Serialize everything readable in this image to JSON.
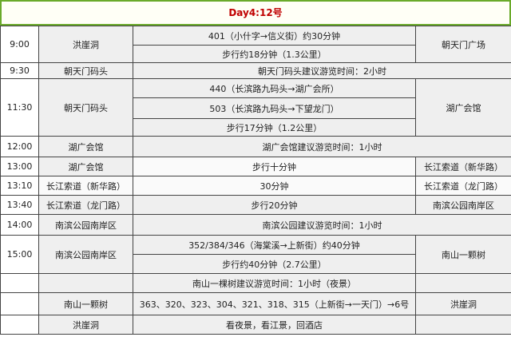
{
  "title": "Day4:12号",
  "rows": {
    "r900": {
      "time": "9:00",
      "from": "洪崖洞",
      "a": "401（小什字→信义街）约30分钟",
      "b": "步行约18分钟（1.3公里）",
      "to": "朝天门广场"
    },
    "r930": {
      "time": "9:30",
      "from": "朝天门码头",
      "note": "朝天门码头建议游览时间：2小时"
    },
    "r1130": {
      "time": "11:30",
      "from": "朝天门码头",
      "a": "440（长滨路九码头→湖广会所）",
      "b": "503（长滨路九码头→下望龙门）",
      "c": "步行17分钟（1.2公里）",
      "to": "湖广会馆"
    },
    "r1200": {
      "time": "12:00",
      "from": "湖广会馆",
      "note": "湖广会馆建议游览时间：1小时"
    },
    "r1300": {
      "time": "13:00",
      "from": "湖广会馆",
      "a": "步行十分钟",
      "to": "长江索道（新华路）"
    },
    "r1310": {
      "time": "13:10",
      "from": "长江索道（新华路）",
      "a": "30分钟",
      "to": "长江索道（龙门路）"
    },
    "r1340": {
      "time": "13:40",
      "from": "长江索道（龙门路）",
      "a": "步行20分钟",
      "to": "南滨公园南岸区"
    },
    "r1400": {
      "time": "14:00",
      "from": "南滨公园南岸区",
      "note": "南滨公园建议游览时间：1小时"
    },
    "r1500": {
      "time": "15:00",
      "from": "南滨公园南岸区",
      "a": "352/384/346（海棠溪→上新街）约40分钟",
      "b": "步行约40分钟（2.7公里）",
      "to": "南山一颗树"
    },
    "rnight": {
      "note": "南山一棵树建议游览时间：1小时（夜景）"
    },
    "rback": {
      "from": "南山一颗树",
      "a": "363、320、323、304、321、318、315（上新街→一天门）→6号",
      "to": "洪崖洞"
    },
    "rend": {
      "from": "洪崖洞",
      "a": "看夜景，看江景，回酒店"
    }
  }
}
